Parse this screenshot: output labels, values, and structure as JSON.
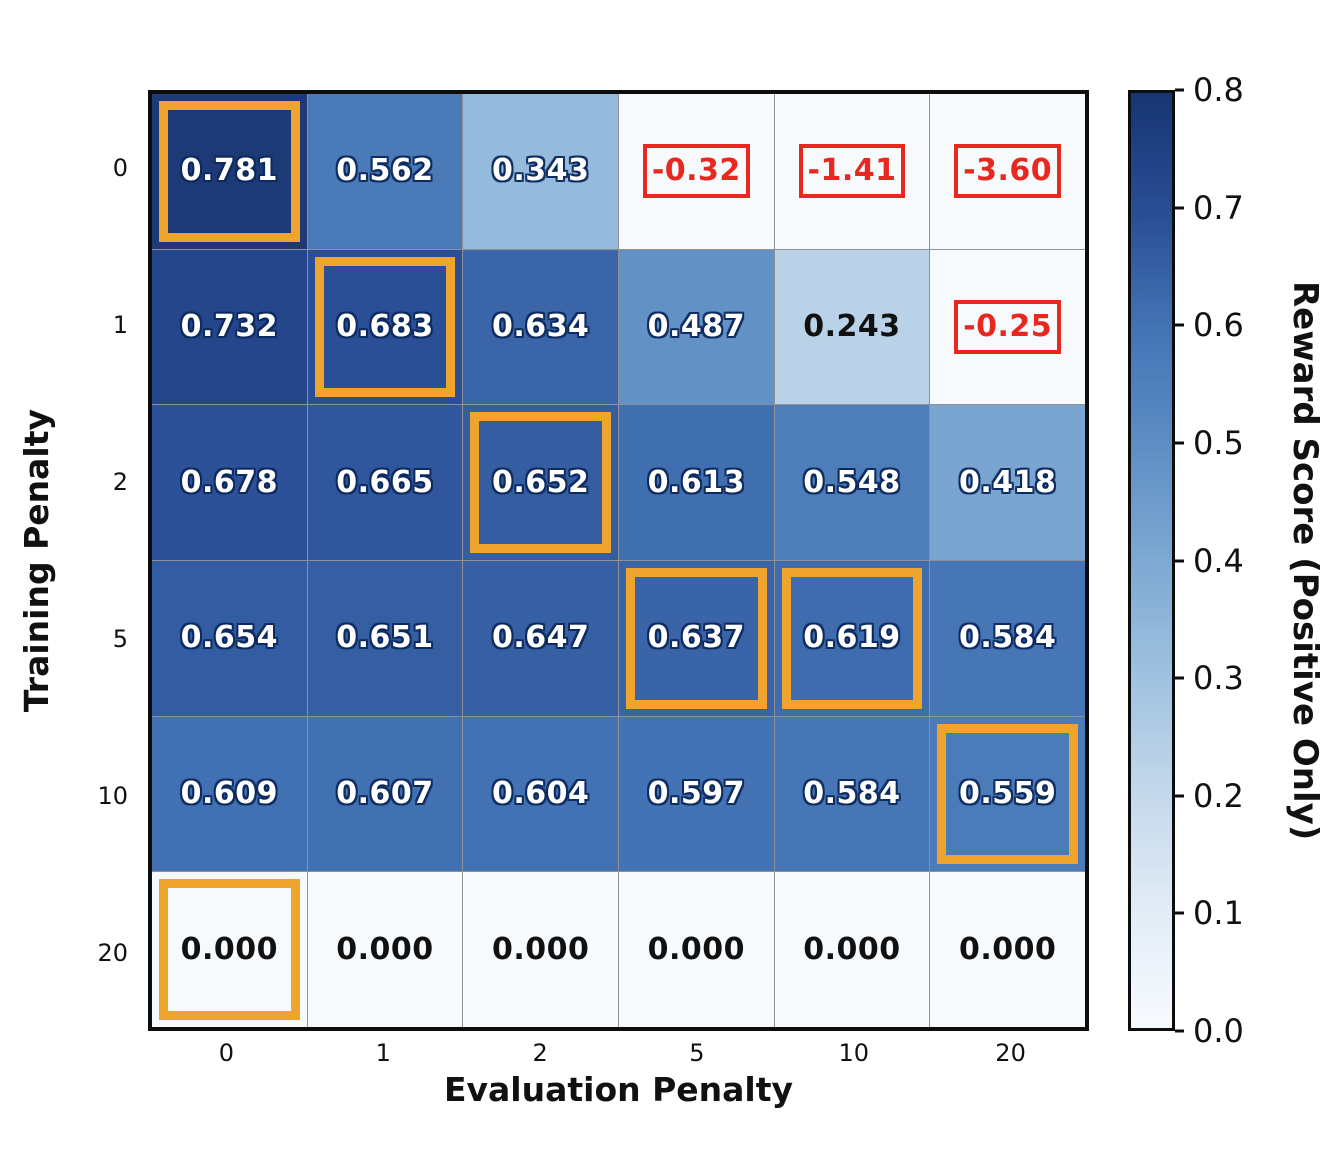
{
  "chart_data": {
    "type": "heatmap",
    "title": "",
    "xlabel": "Evaluation Penalty",
    "ylabel": "Training Penalty",
    "x_categories": [
      "0",
      "1",
      "2",
      "5",
      "10",
      "20"
    ],
    "y_categories": [
      "0",
      "1",
      "2",
      "5",
      "10",
      "20"
    ],
    "vmin": 0.0,
    "vmax": 0.8,
    "grid": true,
    "values": [
      [
        0.781,
        0.562,
        0.343,
        -0.32,
        -1.41,
        -3.6
      ],
      [
        0.732,
        0.683,
        0.634,
        0.487,
        0.243,
        -0.25
      ],
      [
        0.678,
        0.665,
        0.652,
        0.613,
        0.548,
        0.418
      ],
      [
        0.654,
        0.651,
        0.647,
        0.637,
        0.619,
        0.584
      ],
      [
        0.609,
        0.607,
        0.604,
        0.597,
        0.584,
        0.559
      ],
      [
        0.0,
        0.0,
        0.0,
        0.0,
        0.0,
        0.0
      ]
    ],
    "cells": [
      [
        {
          "label": "0.781",
          "bg": "#1e3a76",
          "text": "white",
          "highlight": "orange"
        },
        {
          "label": "0.562",
          "bg": "#4a7ab8",
          "text": "white",
          "highlight": null
        },
        {
          "label": "0.343",
          "bg": "#94bbdc",
          "text": "white",
          "highlight": null
        },
        {
          "label": "-0.32",
          "bg": "#f7fafd",
          "text": "red",
          "highlight": "red"
        },
        {
          "label": "-1.41",
          "bg": "#f7fafd",
          "text": "red",
          "highlight": "red"
        },
        {
          "label": "-3.60",
          "bg": "#f7fafd",
          "text": "red",
          "highlight": "red"
        }
      ],
      [
        {
          "label": "0.732",
          "bg": "#25468a",
          "text": "white",
          "highlight": null
        },
        {
          "label": "0.683",
          "bg": "#2b4f97",
          "text": "white",
          "highlight": "orange"
        },
        {
          "label": "0.634",
          "bg": "#3a65a9",
          "text": "white",
          "highlight": null
        },
        {
          "label": "0.487",
          "bg": "#6191c5",
          "text": "white",
          "highlight": null
        },
        {
          "label": "0.243",
          "bg": "#bad2e8",
          "text": "black",
          "highlight": null
        },
        {
          "label": "-0.25",
          "bg": "#f7fafd",
          "text": "red",
          "highlight": "red"
        }
      ],
      [
        {
          "label": "0.678",
          "bg": "#2d5199",
          "text": "white",
          "highlight": null
        },
        {
          "label": "0.665",
          "bg": "#30579e",
          "text": "white",
          "highlight": null
        },
        {
          "label": "0.652",
          "bg": "#345da2",
          "text": "white",
          "highlight": "orange"
        },
        {
          "label": "0.613",
          "bg": "#406fb0",
          "text": "white",
          "highlight": null
        },
        {
          "label": "0.548",
          "bg": "#4e7eba",
          "text": "white",
          "highlight": null
        },
        {
          "label": "0.418",
          "bg": "#79a5d0",
          "text": "white",
          "highlight": null
        }
      ],
      [
        {
          "label": "0.654",
          "bg": "#345ca2",
          "text": "white",
          "highlight": null
        },
        {
          "label": "0.651",
          "bg": "#355ea3",
          "text": "white",
          "highlight": null
        },
        {
          "label": "0.647",
          "bg": "#365fa4",
          "text": "white",
          "highlight": null
        },
        {
          "label": "0.637",
          "bg": "#3964a8",
          "text": "white",
          "highlight": "orange"
        },
        {
          "label": "0.619",
          "bg": "#3e6cae",
          "text": "white",
          "highlight": "orange"
        },
        {
          "label": "0.584",
          "bg": "#4676b5",
          "text": "white",
          "highlight": null
        }
      ],
      [
        {
          "label": "0.609",
          "bg": "#4171b2",
          "text": "white",
          "highlight": null
        },
        {
          "label": "0.607",
          "bg": "#4271b2",
          "text": "white",
          "highlight": null
        },
        {
          "label": "0.604",
          "bg": "#4272b3",
          "text": "white",
          "highlight": null
        },
        {
          "label": "0.597",
          "bg": "#4373b4",
          "text": "white",
          "highlight": null
        },
        {
          "label": "0.584",
          "bg": "#4676b5",
          "text": "white",
          "highlight": null
        },
        {
          "label": "0.559",
          "bg": "#4b7bb8",
          "text": "white",
          "highlight": "orange"
        }
      ],
      [
        {
          "label": "0.000",
          "bg": "#f7fafd",
          "text": "black",
          "highlight": "orange"
        },
        {
          "label": "0.000",
          "bg": "#f7fafd",
          "text": "black",
          "highlight": null
        },
        {
          "label": "0.000",
          "bg": "#f7fafd",
          "text": "black",
          "highlight": null
        },
        {
          "label": "0.000",
          "bg": "#f7fafd",
          "text": "black",
          "highlight": null
        },
        {
          "label": "0.000",
          "bg": "#f7fafd",
          "text": "black",
          "highlight": null
        },
        {
          "label": "0.000",
          "bg": "#f7fafd",
          "text": "black",
          "highlight": null
        }
      ]
    ],
    "colorbar": {
      "label": "Reward Score (Positive Only)",
      "ticks": [
        "0.8",
        "0.7",
        "0.6",
        "0.5",
        "0.4",
        "0.3",
        "0.2",
        "0.1",
        "0.0"
      ],
      "gradient_top_to_bottom": [
        "#173572",
        "#294c93",
        "#4373b4",
        "#5d8dc3",
        "#7da8d2",
        "#a0c2e0",
        "#c4d8eb",
        "#e2ecf6",
        "#f7fbff"
      ],
      "legend_position": "right"
    },
    "highlight_colors": {
      "orange": "#efa42d",
      "red": "#e8281e"
    }
  }
}
